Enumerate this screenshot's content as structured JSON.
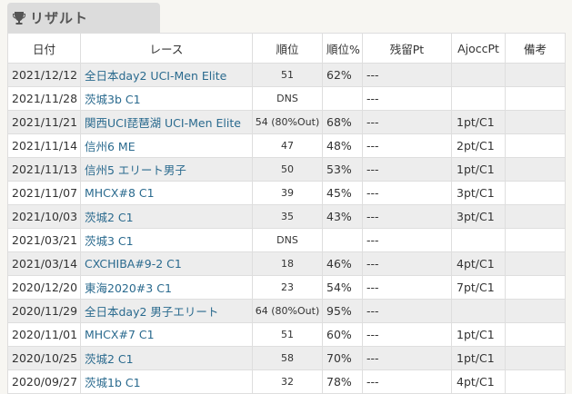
{
  "section": {
    "title": "リザルト",
    "icon": "trophy-icon"
  },
  "table": {
    "headers": [
      "日付",
      "レース",
      "順位",
      "順位%",
      "残留Pt",
      "AjoccPt",
      "備考"
    ],
    "rows": [
      {
        "date": "2021/12/12",
        "race": "全日本day2 UCI-Men Elite",
        "rank": "51",
        "pct": "62%",
        "pt": "---",
        "ajocc": "",
        "note": ""
      },
      {
        "date": "2021/11/28",
        "race": "茨城3b C1",
        "rank": "DNS",
        "pct": "",
        "pt": "---",
        "ajocc": "",
        "note": ""
      },
      {
        "date": "2021/11/21",
        "race": "関西UCI琵琶湖 UCI-Men Elite",
        "rank": "54 (80%Out)",
        "pct": "68%",
        "pt": "---",
        "ajocc": "1pt/C1",
        "note": ""
      },
      {
        "date": "2021/11/14",
        "race": "信州6 ME",
        "rank": "47",
        "pct": "48%",
        "pt": "---",
        "ajocc": "2pt/C1",
        "note": ""
      },
      {
        "date": "2021/11/13",
        "race": "信州5 エリート男子",
        "rank": "50",
        "pct": "53%",
        "pt": "---",
        "ajocc": "1pt/C1",
        "note": ""
      },
      {
        "date": "2021/11/07",
        "race": "MHCX#8 C1",
        "rank": "39",
        "pct": "45%",
        "pt": "---",
        "ajocc": "3pt/C1",
        "note": ""
      },
      {
        "date": "2021/10/03",
        "race": "茨城2 C1",
        "rank": "35",
        "pct": "43%",
        "pt": "---",
        "ajocc": "3pt/C1",
        "note": ""
      },
      {
        "date": "2021/03/21",
        "race": "茨城3 C1",
        "rank": "DNS",
        "pct": "",
        "pt": "---",
        "ajocc": "",
        "note": ""
      },
      {
        "date": "2021/03/14",
        "race": "CXCHIBA#9-2 C1",
        "rank": "18",
        "pct": "46%",
        "pt": "---",
        "ajocc": "4pt/C1",
        "note": ""
      },
      {
        "date": "2020/12/20",
        "race": "東海2020#3 C1",
        "rank": "23",
        "pct": "54%",
        "pt": "---",
        "ajocc": "7pt/C1",
        "note": ""
      },
      {
        "date": "2020/11/29",
        "race": "全日本day2 男子エリート",
        "rank": "64 (80%Out)",
        "pct": "95%",
        "pt": "---",
        "ajocc": "",
        "note": ""
      },
      {
        "date": "2020/11/01",
        "race": "MHCX#7 C1",
        "rank": "51",
        "pct": "60%",
        "pt": "---",
        "ajocc": "1pt/C1",
        "note": ""
      },
      {
        "date": "2020/10/25",
        "race": "茨城2 C1",
        "rank": "58",
        "pct": "70%",
        "pt": "---",
        "ajocc": "1pt/C1",
        "note": ""
      },
      {
        "date": "2020/09/27",
        "race": "茨城1b C1",
        "rank": "32",
        "pct": "78%",
        "pt": "---",
        "ajocc": "4pt/C1",
        "note": ""
      }
    ]
  },
  "colors": {
    "link": "#2a6a8e",
    "row_alt": "#ededed",
    "header_tab": "#dcdcdc"
  }
}
